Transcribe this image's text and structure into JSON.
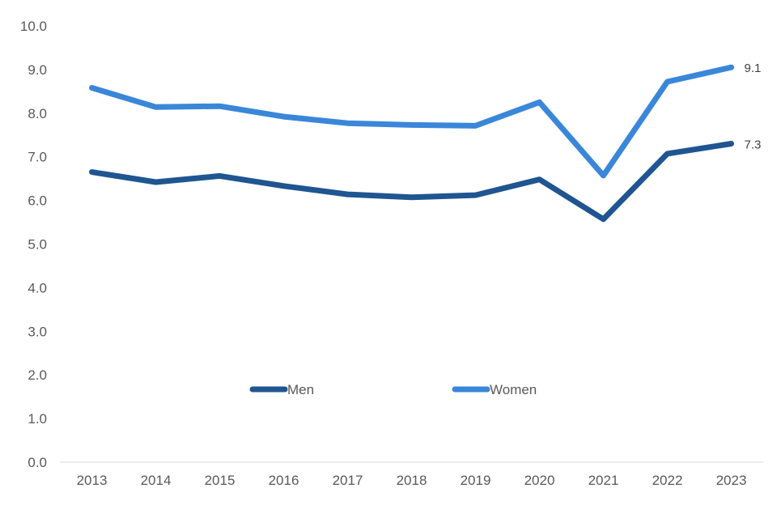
{
  "chart_data": {
    "type": "line",
    "title": "",
    "xlabel": "",
    "ylabel": "",
    "categories": [
      "2013",
      "2014",
      "2015",
      "2016",
      "2017",
      "2018",
      "2019",
      "2020",
      "2021",
      "2022",
      "2023"
    ],
    "ylim": [
      0,
      10
    ],
    "yticks": [
      "0.0",
      "1.0",
      "2.0",
      "3.0",
      "4.0",
      "5.0",
      "6.0",
      "7.0",
      "8.0",
      "9.0",
      "10.0"
    ],
    "grid": false,
    "legend_position": "center",
    "series": [
      {
        "name": "Men",
        "color": "#1f5591",
        "values": [
          6.65,
          6.42,
          6.56,
          6.33,
          6.14,
          6.07,
          6.12,
          6.48,
          5.57,
          7.07,
          7.3
        ],
        "end_label": "7.3"
      },
      {
        "name": "Women",
        "color": "#3a87d9",
        "values": [
          8.58,
          8.14,
          8.16,
          7.92,
          7.77,
          7.73,
          7.71,
          8.25,
          6.57,
          8.72,
          9.05
        ],
        "end_label": "9.1"
      }
    ]
  }
}
